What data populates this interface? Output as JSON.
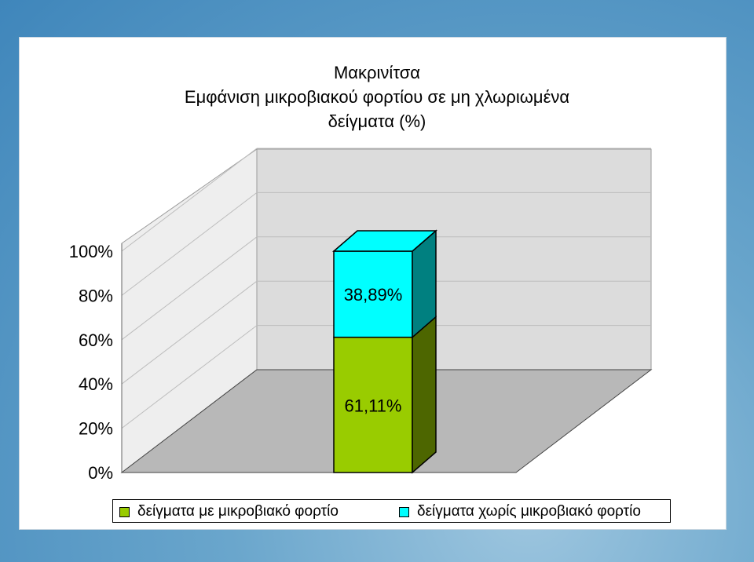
{
  "chart_data": {
    "type": "bar",
    "stacked": true,
    "percent_stacked": true,
    "three_d": true,
    "title_lines": [
      "Μακρινίτσα",
      "Εμφάνιση μικροβιακού φορτίου σε μη χλωριωμένα",
      "δείγματα (%)"
    ],
    "categories": [
      ""
    ],
    "series": [
      {
        "name": "δείγματα με  μικροβιακό φορτίο",
        "values": [
          61.11
        ],
        "label": "61,11%",
        "color": "#99cc00",
        "side_color": "#4d6600"
      },
      {
        "name": "δείγματα χωρίς μικροβιακό φορτίο",
        "values": [
          38.89
        ],
        "label": "38,89%",
        "color": "#00ffff",
        "side_color": "#008080"
      }
    ],
    "yticks": [
      "0%",
      "20%",
      "40%",
      "60%",
      "80%",
      "100%"
    ],
    "ylim": [
      0,
      100
    ],
    "legend_position": "bottom",
    "grid": true
  }
}
